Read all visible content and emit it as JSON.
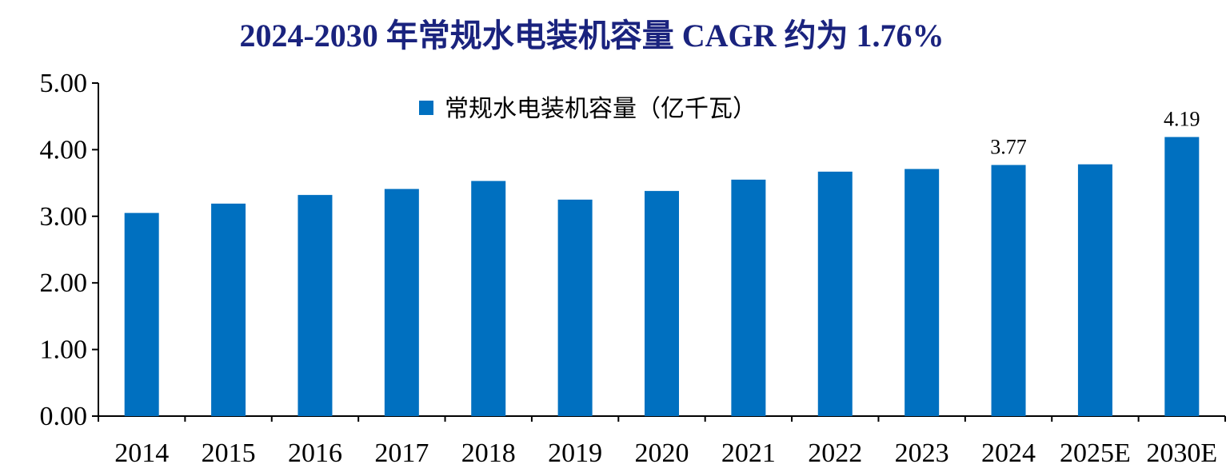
{
  "chart_data": {
    "type": "bar",
    "title": "2024-2030 年常规水电装机容量 CAGR 约为 1.76%",
    "xlabel": "",
    "ylabel": "",
    "categories": [
      "2014",
      "2015",
      "2016",
      "2017",
      "2018",
      "2019",
      "2020",
      "2021",
      "2022",
      "2023",
      "2024",
      "2025E",
      "2030E"
    ],
    "series": [
      {
        "name": "常规水电装机容量（亿千瓦）",
        "values": [
          3.05,
          3.19,
          3.32,
          3.41,
          3.53,
          3.25,
          3.38,
          3.55,
          3.67,
          3.71,
          3.77,
          3.78,
          4.19
        ],
        "color": "#0070C0"
      }
    ],
    "data_labels": {
      "2024": "3.77",
      "2030E": "4.19"
    },
    "ylim": [
      0,
      5
    ],
    "yticks": [
      "0.00",
      "1.00",
      "2.00",
      "3.00",
      "4.00",
      "5.00"
    ],
    "grid": false,
    "legend_position": "top-center",
    "title_color": "#1a237e"
  }
}
